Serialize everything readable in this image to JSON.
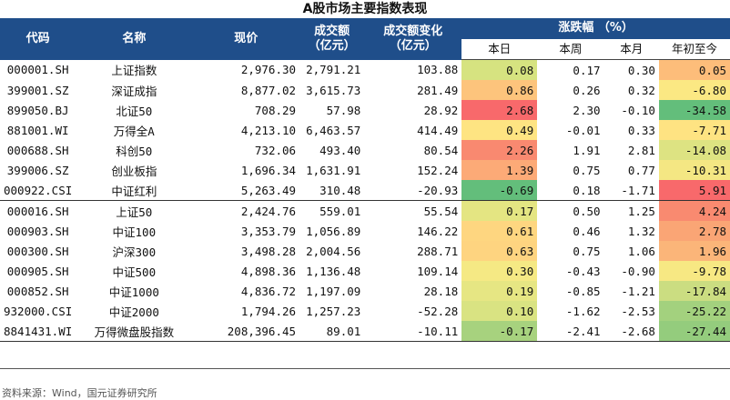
{
  "title": "A股市场主要指数表现",
  "headers": {
    "code": "代码",
    "name": "名称",
    "price": "现价",
    "turnover": "成交额\n（亿元）",
    "turnover_change": "成交额变化\n（亿元）",
    "change_group": "涨跌幅 （%）",
    "day": "本日",
    "week": "本周",
    "month": "本月",
    "ytd": "年初至今"
  },
  "rows": [
    {
      "code": "000001.SH",
      "name": "上证指数",
      "price": "2,976.30",
      "turnover": "2,791.21",
      "turnover_change": "103.88",
      "day": "0.08",
      "week": "0.17",
      "month": "0.30",
      "ytd": "0.05",
      "day_color": "#d6e380",
      "ytd_color": "#fdbd7a"
    },
    {
      "code": "399001.SZ",
      "name": "深证成指",
      "price": "8,877.02",
      "turnover": "3,615.73",
      "turnover_change": "281.49",
      "day": "0.86",
      "week": "0.26",
      "month": "0.32",
      "ytd": "-6.80",
      "day_color": "#fdc47c",
      "ytd_color": "#fbe883"
    },
    {
      "code": "899050.BJ",
      "name": "北证50",
      "price": "708.29",
      "turnover": "57.98",
      "turnover_change": "28.92",
      "day": "2.68",
      "week": "2.30",
      "month": "-0.10",
      "ytd": "-34.58",
      "day_color": "#f8696b",
      "ytd_color": "#63be7b"
    },
    {
      "code": "881001.WI",
      "name": "万得全A",
      "price": "4,213.10",
      "turnover": "6,463.57",
      "turnover_change": "414.49",
      "day": "0.49",
      "week": "-0.01",
      "month": "0.33",
      "ytd": "-7.71",
      "day_color": "#fee482",
      "ytd_color": "#fee382"
    },
    {
      "code": "000688.SH",
      "name": "科创50",
      "price": "732.06",
      "turnover": "493.40",
      "turnover_change": "80.54",
      "day": "2.26",
      "week": "1.91",
      "month": "2.81",
      "ytd": "-14.08",
      "day_color": "#f98970",
      "ytd_color": "#dde382"
    },
    {
      "code": "399006.SZ",
      "name": "创业板指",
      "price": "1,696.34",
      "turnover": "1,631.91",
      "turnover_change": "152.24",
      "day": "1.39",
      "week": "0.75",
      "month": "0.77",
      "ytd": "-10.31",
      "day_color": "#fcaa77",
      "ytd_color": "#f4e783"
    },
    {
      "code": "000922.CSI",
      "name": "中证红利",
      "price": "5,263.49",
      "turnover": "310.48",
      "turnover_change": "-20.93",
      "day": "-0.69",
      "week": "0.18",
      "month": "-1.71",
      "ytd": "5.91",
      "day_color": "#63be7b",
      "ytd_color": "#f8696b"
    },
    {
      "code": "000016.SH",
      "name": "上证50",
      "price": "2,424.76",
      "turnover": "559.01",
      "turnover_change": "55.54",
      "day": "0.17",
      "week": "0.50",
      "month": "1.25",
      "ytd": "4.24",
      "day_color": "#e4e582",
      "ytd_color": "#f98a70"
    },
    {
      "code": "000903.SH",
      "name": "中证100",
      "price": "3,353.79",
      "turnover": "1,056.89",
      "turnover_change": "146.22",
      "day": "0.61",
      "week": "0.46",
      "month": "1.32",
      "ytd": "2.78",
      "day_color": "#fed680",
      "ytd_color": "#faa575"
    },
    {
      "code": "000300.SH",
      "name": "沪深300",
      "price": "3,498.28",
      "turnover": "2,004.56",
      "turnover_change": "288.71",
      "day": "0.63",
      "week": "0.75",
      "month": "1.06",
      "ytd": "1.96",
      "day_color": "#fed480",
      "ytd_color": "#fbb579"
    },
    {
      "code": "000905.SH",
      "name": "中证500",
      "price": "4,898.36",
      "turnover": "1,136.48",
      "turnover_change": "109.14",
      "day": "0.30",
      "week": "-0.43",
      "month": "-0.90",
      "ytd": "-9.78",
      "day_color": "#f5e984",
      "ytd_color": "#f7e883"
    },
    {
      "code": "000852.SH",
      "name": "中证1000",
      "price": "4,836.72",
      "turnover": "1,197.09",
      "turnover_change": "28.18",
      "day": "0.19",
      "week": "-0.85",
      "month": "-1.21",
      "ytd": "-17.84",
      "day_color": "#e6e683",
      "ytd_color": "#cbdd81"
    },
    {
      "code": "932000.CSI",
      "name": "中证2000",
      "price": "1,794.26",
      "turnover": "1,257.23",
      "turnover_change": "-52.28",
      "day": "0.10",
      "week": "-1.62",
      "month": "-2.53",
      "ytd": "-25.22",
      "day_color": "#d9e382",
      "ytd_color": "#a3d17e"
    },
    {
      "code": "8841431.WI",
      "name": "万得微盘股指数",
      "price": "208,396.45",
      "turnover": "89.01",
      "turnover_change": "-10.11",
      "day": "-0.17",
      "week": "-2.41",
      "month": "-2.68",
      "ytd": "-27.44",
      "day_color": "#a7d27e",
      "ytd_color": "#94cc7d"
    }
  ],
  "footnote": "资料来源：Wind，国元证券研究所"
}
